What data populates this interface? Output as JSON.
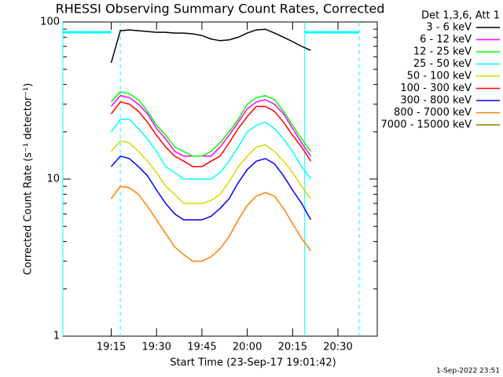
{
  "chart_data": {
    "type": "line",
    "title": "RHESSI Observing Summary Count Rates, Corrected",
    "x_label": "Start Time (23-Sep-17 19:01:42)",
    "y_label": "Corrected Count Rate (s⁻¹ detector⁻¹)",
    "legend_title": "Det 1,3,6, Att 1",
    "footer": "1-Sep-2022 23:51",
    "log_y": true,
    "legend": "outside-right",
    "xlim": [
      "18:59",
      "20:43"
    ],
    "xticks": [
      "19:15",
      "19:30",
      "19:45",
      "20:00",
      "20:15",
      "20:30"
    ],
    "ylim": [
      1,
      100
    ],
    "yticks": [
      1,
      10,
      100
    ],
    "markers": {
      "color": "#00ffff",
      "solid": [
        "18:59",
        "20:19"
      ],
      "dashed": [
        "19:18",
        "20:37"
      ],
      "level": 86,
      "level_spans": [
        [
          "18:59",
          "19:15"
        ],
        [
          "20:19",
          "20:37"
        ]
      ]
    },
    "x": [
      "19:15",
      "19:18",
      "19:21",
      "19:24",
      "19:27",
      "19:30",
      "19:33",
      "19:36",
      "19:39",
      "19:42",
      "19:45",
      "19:48",
      "19:51",
      "19:54",
      "19:57",
      "20:00",
      "20:03",
      "20:06",
      "20:09",
      "20:12",
      "20:15",
      "20:18",
      "20:21"
    ],
    "series": [
      {
        "name": "3 - 6 keV",
        "color": "#000000",
        "values": [
          55,
          88,
          89,
          88,
          87,
          86,
          86,
          85,
          85,
          84,
          82,
          78,
          76,
          77,
          80,
          85,
          89,
          90,
          85,
          80,
          75,
          70,
          66
        ]
      },
      {
        "name": "6 - 12 keV",
        "color": "#ff00ff",
        "values": [
          29,
          34,
          33,
          30,
          26,
          21,
          18,
          15,
          14,
          14,
          14,
          14,
          16,
          19,
          23,
          28,
          31,
          32,
          30,
          26,
          21,
          17,
          14
        ]
      },
      {
        "name": "12 - 25 keV",
        "color": "#00ff00",
        "values": [
          31,
          36,
          35,
          32,
          27,
          22,
          19,
          16,
          15,
          14,
          14,
          15,
          17,
          20,
          24,
          30,
          33,
          34,
          32,
          27,
          22,
          18,
          15
        ]
      },
      {
        "name": "25 - 50 keV",
        "color": "#00ffff",
        "values": [
          20,
          24,
          24,
          21,
          18,
          15,
          12,
          11,
          10,
          10,
          10,
          10,
          11,
          13,
          16,
          20,
          22,
          23,
          21,
          18,
          15,
          12,
          10
        ]
      },
      {
        "name": "50 - 100 keV",
        "color": "#d8d800",
        "values": [
          15,
          17.5,
          17,
          15,
          13,
          11,
          9,
          8,
          7,
          7,
          7,
          7.3,
          8,
          9.6,
          12,
          14,
          16,
          16.5,
          15,
          13,
          11,
          9,
          7.5
        ]
      },
      {
        "name": "100 - 300 keV",
        "color": "#ff0000",
        "values": [
          26,
          31,
          30,
          27,
          23,
          19,
          16,
          14,
          13,
          12,
          12,
          13,
          14,
          17,
          21,
          25,
          29,
          29,
          27,
          23,
          19,
          16,
          13
        ]
      },
      {
        "name": "300 - 800 keV",
        "color": "#0000ff",
        "values": [
          12,
          14,
          13.5,
          12,
          10.5,
          8.5,
          7,
          6,
          5.5,
          5.5,
          5.5,
          5.8,
          6.5,
          7.5,
          9.5,
          11.5,
          13,
          13.5,
          12.5,
          10.5,
          8.5,
          7,
          5.5
        ]
      },
      {
        "name": "800 - 7000 keV",
        "color": "#ff8000",
        "values": [
          7.5,
          9,
          8.8,
          8,
          6.7,
          5.5,
          4.5,
          3.7,
          3.3,
          3,
          3,
          3.2,
          3.6,
          4.3,
          5.5,
          6.8,
          7.8,
          8.2,
          7.8,
          6.5,
          5.2,
          4.2,
          3.5
        ]
      },
      {
        "name": "7000 - 15000 keV",
        "color": "#808000",
        "values": [
          null,
          null,
          null,
          null,
          null,
          null,
          null,
          null,
          null,
          null,
          null,
          null,
          null,
          null,
          null,
          null,
          null,
          null,
          null,
          null,
          null,
          null,
          null
        ]
      }
    ]
  }
}
